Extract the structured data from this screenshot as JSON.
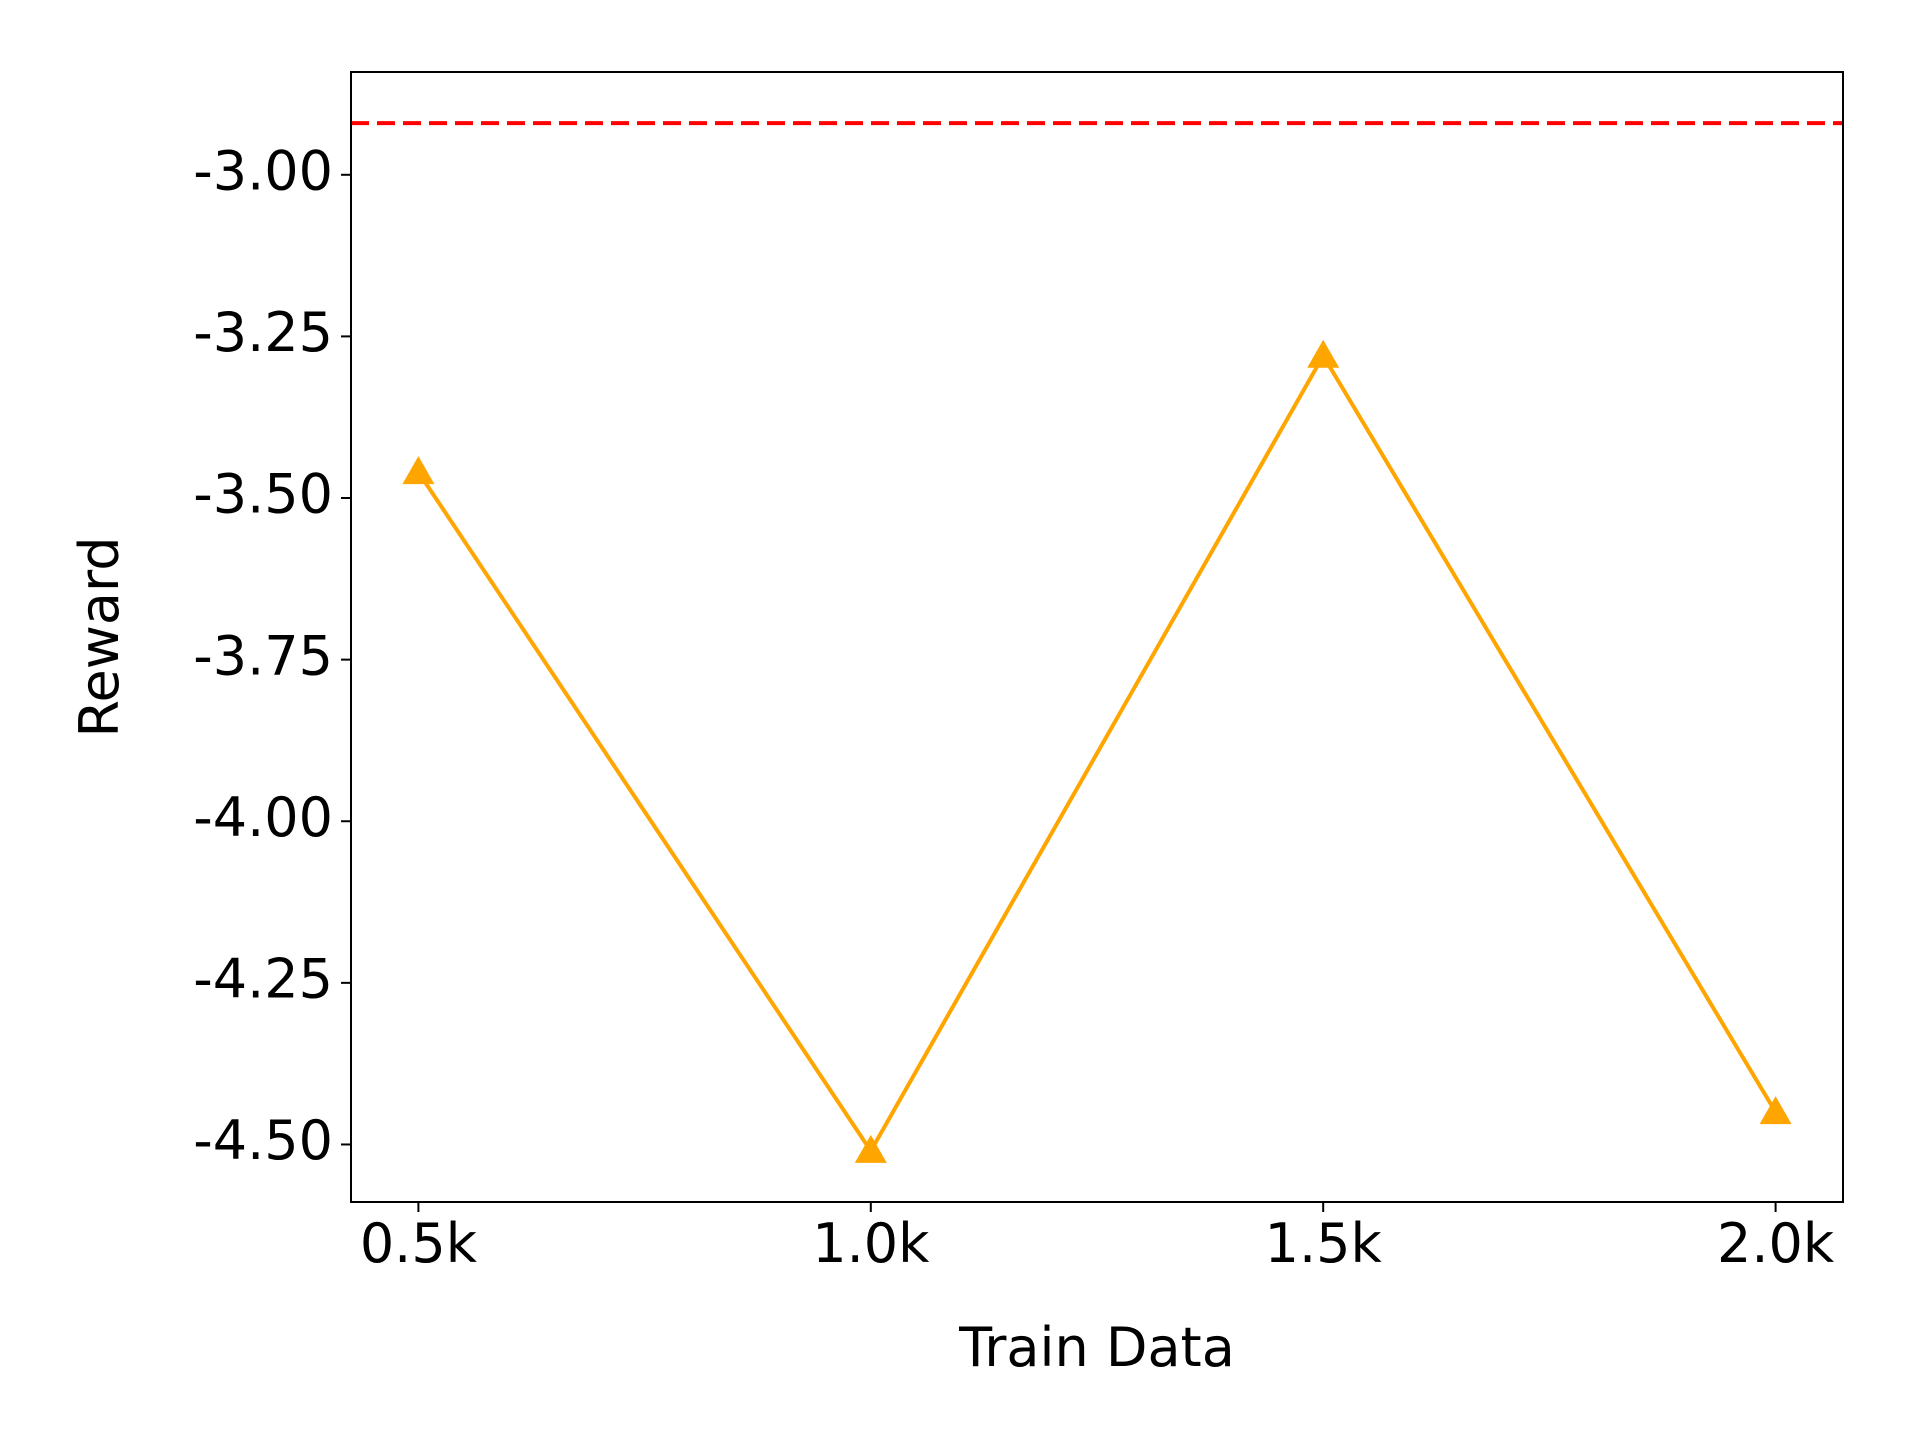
{
  "chart_data": {
    "type": "line",
    "x_label": "Train Data",
    "y_label": "Reward",
    "categories": [
      "0.5k",
      "1.0k",
      "1.5k",
      "2.0k"
    ],
    "values": [
      -3.46,
      -4.51,
      -3.28,
      -4.45
    ],
    "color": "#ffa500",
    "marker": "triangle",
    "reference_line": {
      "value": -2.92,
      "color": "#ff0000",
      "style": "dashed"
    },
    "ylim": [
      -4.589,
      -2.841
    ],
    "yticks": [
      {
        "value": -3.0,
        "label": "-3.00"
      },
      {
        "value": -3.25,
        "label": "-3.25"
      },
      {
        "value": -3.5,
        "label": "-3.50"
      },
      {
        "value": -3.75,
        "label": "-3.75"
      },
      {
        "value": -4.0,
        "label": "-4.00"
      },
      {
        "value": -4.25,
        "label": "-4.25"
      },
      {
        "value": -4.5,
        "label": "-4.50"
      }
    ],
    "grid": false
  }
}
